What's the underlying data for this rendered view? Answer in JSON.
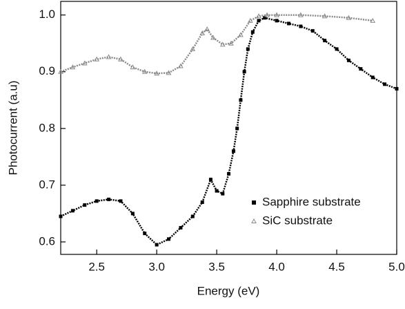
{
  "chart_data": {
    "type": "scatter",
    "xlabel": "Energy (eV)",
    "ylabel": "Photocurrent (a.u)",
    "xlim": [
      2.2,
      5.0
    ],
    "ylim": [
      0.578,
      1.024
    ],
    "xticks": [
      2.5,
      {
        "value": 3,
        "label": "3.0"
      },
      3.5,
      {
        "value": 4,
        "label": "4.0"
      },
      4.5,
      {
        "value": 5,
        "label": "5.0"
      }
    ],
    "yticks": [
      0.6,
      0.7,
      0.8,
      0.9,
      {
        "value": 1,
        "label": "1.0"
      }
    ],
    "legend": "lower right",
    "series": [
      {
        "name": "Sapphire substrate",
        "color": "#000000",
        "marker": "square",
        "x": [
          2.2,
          2.3,
          2.4,
          2.5,
          2.6,
          2.7,
          2.8,
          2.9,
          3.0,
          3.1,
          3.2,
          3.3,
          3.38,
          3.45,
          3.5,
          3.55,
          3.6,
          3.64,
          3.67,
          3.7,
          3.73,
          3.76,
          3.8,
          3.85,
          3.9,
          4.0,
          4.1,
          4.2,
          4.3,
          4.4,
          4.5,
          4.6,
          4.7,
          4.8,
          4.9,
          5.0
        ],
        "values": [
          0.645,
          0.655,
          0.665,
          0.672,
          0.675,
          0.672,
          0.65,
          0.615,
          0.595,
          0.605,
          0.625,
          0.645,
          0.67,
          0.71,
          0.69,
          0.685,
          0.72,
          0.76,
          0.8,
          0.85,
          0.9,
          0.94,
          0.97,
          0.99,
          0.995,
          0.99,
          0.985,
          0.98,
          0.972,
          0.955,
          0.94,
          0.92,
          0.905,
          0.89,
          0.878,
          0.87
        ]
      },
      {
        "name": "SiC substrate",
        "color": "#8a8a8a",
        "marker": "triangle",
        "x": [
          2.2,
          2.3,
          2.4,
          2.5,
          2.6,
          2.7,
          2.8,
          2.9,
          3.0,
          3.1,
          3.2,
          3.3,
          3.38,
          3.42,
          3.47,
          3.55,
          3.62,
          3.7,
          3.78,
          3.85,
          3.92,
          4.0,
          4.2,
          4.4,
          4.6,
          4.8
        ],
        "values": [
          0.9,
          0.908,
          0.915,
          0.922,
          0.926,
          0.922,
          0.908,
          0.9,
          0.897,
          0.898,
          0.91,
          0.94,
          0.968,
          0.975,
          0.96,
          0.948,
          0.95,
          0.965,
          0.99,
          0.998,
          1.0,
          1.0,
          1.0,
          0.998,
          0.995,
          0.99
        ]
      }
    ]
  }
}
